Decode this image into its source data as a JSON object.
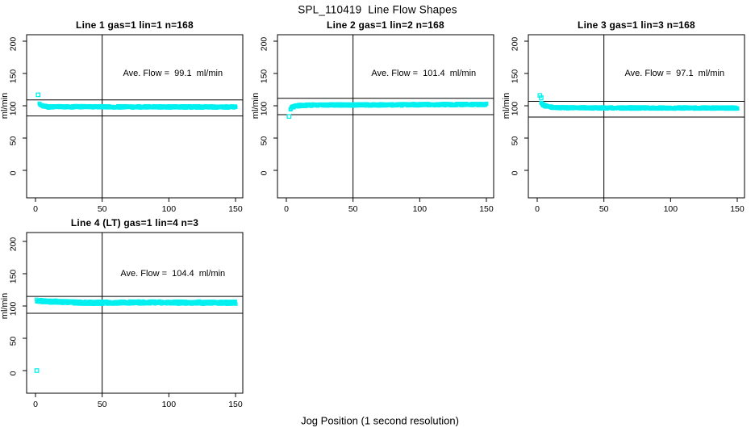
{
  "figure": {
    "title": "SPL_110419  Line Flow Shapes",
    "xlabel": "Jog Position (1 second resolution)"
  },
  "chart_data": {
    "type": "scatter",
    "title": "SPL_110419  Line Flow Shapes",
    "xlabel": "Jog Position (1 second resolution)",
    "ylabel": "ml/min",
    "marker": {
      "shape": "open-square",
      "color": "#00F0F0"
    },
    "line_color": "#000000",
    "x_ticks": [
      0,
      50,
      100,
      150
    ],
    "y_ticks": [
      0,
      50,
      100,
      150,
      200
    ],
    "xlim": [
      0,
      150
    ],
    "ylim": [
      0,
      200
    ],
    "vline_x": 50,
    "annotation_position": {
      "x": 103,
      "y": 150
    },
    "panels": [
      {
        "title": "Line 1 gas=1 lin=1 n=168",
        "annotation": "Ave. Flow =  99.1  ml/min",
        "ave_flow_ml_min": 99.1,
        "n": 168,
        "ref_upper": 109.0,
        "ref_lower": 84.2,
        "outliers": [
          [
            2,
            117
          ]
        ],
        "band": {
          "x_start": 3,
          "x_end": 150,
          "halfwidth": 1.5,
          "backbone": [
            [
              3,
              103.5
            ],
            [
              4,
              101.5
            ],
            [
              5,
              100.3
            ],
            [
              7,
              99.3
            ],
            [
              10,
              98.0
            ],
            [
              15,
              98.4
            ],
            [
              30,
              98.4
            ],
            [
              60,
              98.3
            ],
            [
              100,
              98.2
            ],
            [
              150,
              98.1
            ]
          ]
        }
      },
      {
        "title": "Line 2 gas=1 lin=2 n=168",
        "annotation": "Ave. Flow =  101.4  ml/min",
        "ave_flow_ml_min": 101.4,
        "n": 168,
        "ref_upper": 111.5,
        "ref_lower": 86.2,
        "outliers": [
          [
            2,
            83.5
          ]
        ],
        "band": {
          "x_start": 3,
          "x_end": 150,
          "halfwidth": 1.6,
          "backbone": [
            [
              3,
              95.0
            ],
            [
              4,
              97.0
            ],
            [
              5,
              98.3
            ],
            [
              7,
              99.4
            ],
            [
              10,
              100.2
            ],
            [
              15,
              100.8
            ],
            [
              30,
              101.2
            ],
            [
              60,
              101.3
            ],
            [
              100,
              101.6
            ],
            [
              130,
              101.9
            ],
            [
              150,
              102.0
            ]
          ]
        }
      },
      {
        "title": "Line 3 gas=1 lin=3 n=168",
        "annotation": "Ave. Flow =  97.1  ml/min",
        "ave_flow_ml_min": 97.1,
        "n": 168,
        "ref_upper": 106.8,
        "ref_lower": 82.5,
        "outliers": [
          [
            2,
            116
          ],
          [
            3,
            112.5
          ]
        ],
        "band": {
          "x_start": 3,
          "x_end": 150,
          "halfwidth": 1.5,
          "backbone": [
            [
              3,
              105.0
            ],
            [
              4,
              102.5
            ],
            [
              6,
              100.0
            ],
            [
              9,
              98.3
            ],
            [
              14,
              97.3
            ],
            [
              25,
              96.8
            ],
            [
              60,
              96.6
            ],
            [
              100,
              96.6
            ],
            [
              150,
              96.5
            ]
          ]
        }
      },
      {
        "title": "Line 4 (LT) gas=1 lin=4 n=3",
        "annotation": "Ave. Flow =  104.4  ml/min",
        "ave_flow_ml_min": 104.4,
        "n": 3,
        "ref_upper": 114.8,
        "ref_lower": 88.7,
        "outliers": [
          [
            1,
            0
          ]
        ],
        "band": {
          "x_start": 1,
          "x_end": 150,
          "halfwidth": 2.2,
          "backbone": [
            [
              1,
              108.3
            ],
            [
              4,
              107.8
            ],
            [
              10,
              107.0
            ],
            [
              20,
              106.2
            ],
            [
              35,
              105.2
            ],
            [
              45,
              104.9
            ],
            [
              60,
              105.3
            ],
            [
              90,
              105.4
            ],
            [
              120,
              105.2
            ],
            [
              150,
              105.0
            ]
          ]
        }
      }
    ]
  }
}
